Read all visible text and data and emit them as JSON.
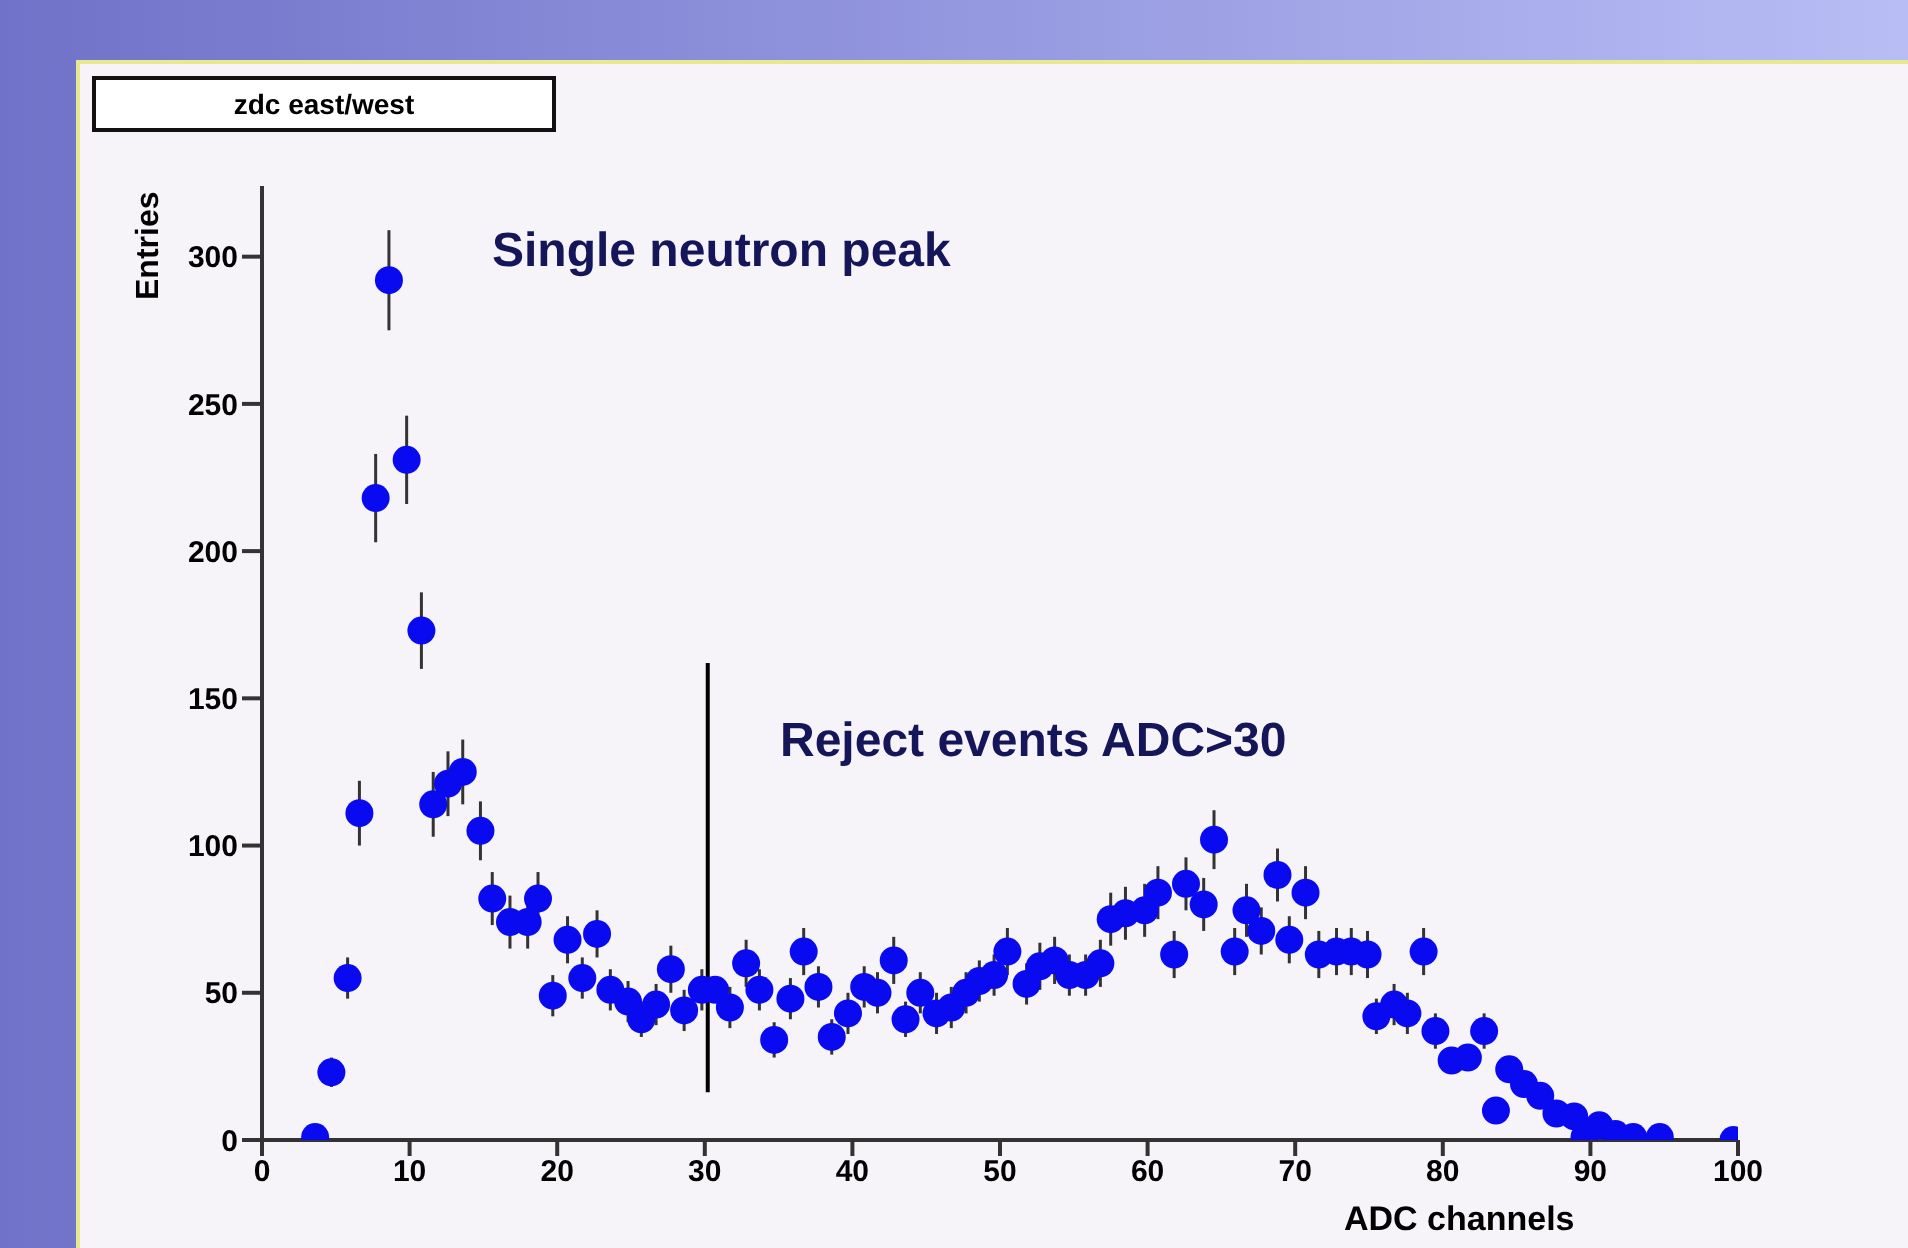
{
  "chart_data": {
    "type": "scatter",
    "title": "zdc east/west",
    "xlabel": "ADC channels",
    "ylabel": "Entries",
    "annotations": [
      "Single neutron peak",
      "Reject events ADC>30"
    ],
    "x": [
      3.6,
      4.7,
      5.8,
      6.6,
      7.7,
      8.6,
      9.8,
      10.8,
      11.6,
      12.6,
      13.6,
      14.8,
      15.6,
      16.8,
      18,
      18.7,
      19.7,
      20.7,
      21.7,
      22.7,
      23.6,
      24.8,
      25.7,
      26.7,
      27.7,
      28.6,
      29.8,
      30.7,
      31.7,
      32.8,
      33.7,
      34.7,
      35.8,
      36.7,
      37.7,
      38.6,
      39.7,
      40.8,
      41.7,
      42.8,
      43.6,
      44.6,
      45.7,
      46.7,
      47.7,
      48.6,
      49.6,
      50.5,
      51.8,
      52.7,
      53.7,
      54.7,
      55.8,
      56.8,
      57.5,
      58.5,
      59.8,
      60.7,
      61.8,
      62.6,
      63.8,
      64.5,
      65.9,
      66.7,
      67.7,
      68.8,
      69.6,
      70.7,
      71.6,
      72.8,
      73.8,
      74.9,
      75.5,
      76.7,
      77.6,
      78.7,
      79.5,
      80.6,
      81.7,
      82.8,
      83.6,
      84.5,
      85.5,
      86.6,
      87.7,
      88.9,
      89.6,
      90.6,
      91.7,
      92.9,
      94.7,
      99.7
    ],
    "values": [
      1,
      23,
      55,
      111,
      218,
      292,
      231,
      173,
      114,
      121,
      125,
      105,
      82,
      74,
      74,
      82,
      49,
      68,
      55,
      70,
      51,
      47,
      41,
      46,
      58,
      44,
      51,
      51,
      45,
      60,
      51,
      34,
      48,
      64,
      52,
      35,
      43,
      52,
      50,
      61,
      41,
      50,
      43,
      45,
      50,
      54,
      56,
      64,
      53,
      59,
      61,
      56,
      56,
      60,
      75,
      77,
      78,
      84,
      63,
      87,
      80,
      102,
      64,
      78,
      71,
      90,
      68,
      84,
      63,
      64,
      64,
      63,
      42,
      46,
      43,
      64,
      37,
      27,
      28,
      37,
      10,
      24,
      19,
      15,
      9,
      8,
      1,
      5,
      2,
      1,
      1,
      0
    ],
    "errors": [
      null,
      5,
      7,
      11,
      15,
      17,
      15,
      13,
      11,
      11,
      11,
      10,
      9,
      9,
      9,
      9,
      7,
      8,
      7,
      8,
      7,
      7,
      6,
      7,
      8,
      7,
      7,
      null,
      7,
      8,
      7,
      6,
      7,
      8,
      7,
      6,
      7,
      7,
      7,
      8,
      6,
      7,
      7,
      7,
      7,
      7,
      7,
      8,
      7,
      8,
      8,
      7,
      7,
      8,
      9,
      9,
      9,
      9,
      8,
      9,
      9,
      10,
      8,
      9,
      8,
      9,
      8,
      9,
      8,
      8,
      8,
      8,
      6,
      7,
      7,
      8,
      6,
      null,
      null,
      6,
      null,
      null,
      null,
      null,
      null,
      null,
      null,
      null,
      null,
      null,
      null,
      null
    ],
    "color": "#0a0af0",
    "marker": "circle",
    "xlim": [
      0,
      100
    ],
    "xticks": [
      0,
      10,
      20,
      30,
      40,
      50,
      60,
      70,
      80,
      90,
      100
    ],
    "ylim": [
      0,
      324
    ],
    "yticks": [
      0,
      50,
      100,
      150,
      200,
      250,
      300
    ],
    "ref_lines": [
      {
        "axis": "x",
        "value": 30.2,
        "color": "#000000"
      }
    ],
    "grid": false
  }
}
